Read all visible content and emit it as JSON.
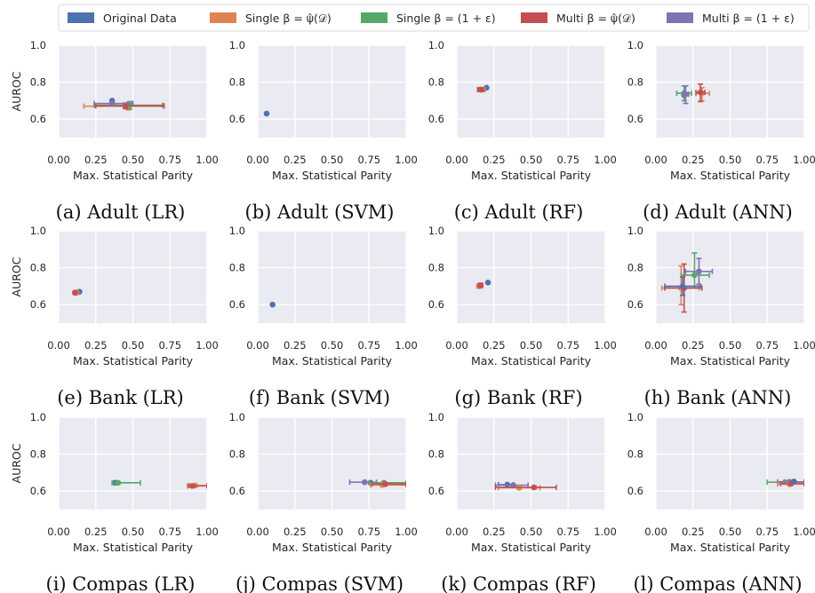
{
  "legend": [
    {
      "label": "Original Data",
      "color": "#4c72b0"
    },
    {
      "label": "Single β = ψ̂(𝒟)",
      "color": "#dd8452"
    },
    {
      "label": "Single β = (1 + ε)",
      "color": "#55a868"
    },
    {
      "label": "Multi β = ψ̂(𝒟)",
      "color": "#c44e52"
    },
    {
      "label": "Multi β = (1 + ε)",
      "color": "#8172b3"
    }
  ],
  "axes": {
    "xlabel": "Max. Statistical Parity",
    "ylabel": "AUROC",
    "xticks": [
      "0.00",
      "0.25",
      "0.50",
      "0.75",
      "1.00"
    ],
    "yticks": [
      "0.6",
      "0.8",
      "1.0"
    ],
    "xlim": [
      0,
      1
    ],
    "ylim": [
      0.5,
      1.0
    ]
  },
  "chart_data": [
    {
      "type": "scatter",
      "title": "(a) Adult (LR)",
      "points": [
        {
          "series": 0,
          "x": 0.36,
          "y": 0.7,
          "xerr": [
            0.0,
            0.0
          ],
          "yerr": [
            0,
            0
          ]
        },
        {
          "series": 1,
          "x": 0.47,
          "y": 0.67,
          "xerr": [
            0.3,
            0.24
          ],
          "yerr": [
            0.02,
            0.02
          ]
        },
        {
          "series": 2,
          "x": 0.48,
          "y": 0.675,
          "xerr": [
            0.24,
            0.22
          ],
          "yerr": [
            0.02,
            0.02
          ]
        },
        {
          "series": 3,
          "x": 0.45,
          "y": 0.672,
          "xerr": [
            0.2,
            0.26
          ],
          "yerr": [
            0.015,
            0.015
          ]
        },
        {
          "series": 4,
          "x": 0.36,
          "y": 0.685,
          "xerr": [
            0.12,
            0.14
          ],
          "yerr": [
            0.01,
            0.01
          ]
        }
      ]
    },
    {
      "type": "scatter",
      "title": "(b) Adult (SVM)",
      "points": [
        {
          "series": 0,
          "x": 0.06,
          "y": 0.63,
          "xerr": [
            0,
            0
          ],
          "yerr": [
            0,
            0
          ]
        }
      ]
    },
    {
      "type": "scatter",
      "title": "(c) Adult (RF)",
      "points": [
        {
          "series": 0,
          "x": 0.2,
          "y": 0.77,
          "xerr": [
            0,
            0
          ],
          "yerr": [
            0,
            0
          ]
        },
        {
          "series": 1,
          "x": 0.17,
          "y": 0.76,
          "xerr": [
            0.02,
            0.02
          ],
          "yerr": [
            0.008,
            0.008
          ]
        },
        {
          "series": 3,
          "x": 0.16,
          "y": 0.76,
          "xerr": [
            0.02,
            0.02
          ],
          "yerr": [
            0.008,
            0.008
          ]
        }
      ]
    },
    {
      "type": "scatter",
      "title": "(d) Adult (ANN)",
      "points": [
        {
          "series": 0,
          "x": 0.19,
          "y": 0.73,
          "xerr": [
            0,
            0
          ],
          "yerr": [
            0,
            0
          ]
        },
        {
          "series": 1,
          "x": 0.31,
          "y": 0.74,
          "xerr": [
            0.04,
            0.05
          ],
          "yerr": [
            0.04,
            0.03
          ]
        },
        {
          "series": 2,
          "x": 0.19,
          "y": 0.74,
          "xerr": [
            0.05,
            0.05
          ],
          "yerr": [
            0.04,
            0.04
          ]
        },
        {
          "series": 3,
          "x": 0.3,
          "y": 0.745,
          "xerr": [
            0.03,
            0.03
          ],
          "yerr": [
            0.05,
            0.045
          ]
        },
        {
          "series": 4,
          "x": 0.2,
          "y": 0.735,
          "xerr": [
            0.02,
            0.02
          ],
          "yerr": [
            0.05,
            0.045
          ]
        }
      ]
    },
    {
      "type": "scatter",
      "title": "(e) Bank (LR)",
      "points": [
        {
          "series": 0,
          "x": 0.14,
          "y": 0.67,
          "xerr": [
            0,
            0
          ],
          "yerr": [
            0,
            0
          ]
        },
        {
          "series": 1,
          "x": 0.12,
          "y": 0.665,
          "xerr": [
            0.01,
            0.01
          ],
          "yerr": [
            0.005,
            0.005
          ]
        },
        {
          "series": 3,
          "x": 0.11,
          "y": 0.665,
          "xerr": [
            0.01,
            0.01
          ],
          "yerr": [
            0.005,
            0.005
          ]
        }
      ]
    },
    {
      "type": "scatter",
      "title": "(f) Bank (SVM)",
      "points": [
        {
          "series": 0,
          "x": 0.1,
          "y": 0.6,
          "xerr": [
            0,
            0
          ],
          "yerr": [
            0,
            0
          ]
        }
      ]
    },
    {
      "type": "scatter",
      "title": "(g) Bank (RF)",
      "points": [
        {
          "series": 0,
          "x": 0.21,
          "y": 0.72,
          "xerr": [
            0,
            0
          ],
          "yerr": [
            0,
            0
          ]
        },
        {
          "series": 1,
          "x": 0.15,
          "y": 0.7,
          "xerr": [
            0.015,
            0.015
          ],
          "yerr": [
            0.008,
            0.008
          ]
        },
        {
          "series": 3,
          "x": 0.16,
          "y": 0.705,
          "xerr": [
            0.015,
            0.015
          ],
          "yerr": [
            0.008,
            0.008
          ]
        }
      ]
    },
    {
      "type": "scatter",
      "title": "(h) Bank (ANN)",
      "points": [
        {
          "series": 1,
          "x": 0.17,
          "y": 0.69,
          "xerr": [
            0.13,
            0.12
          ],
          "yerr": [
            0.09,
            0.12
          ]
        },
        {
          "series": 2,
          "x": 0.26,
          "y": 0.76,
          "xerr": [
            0.09,
            0.1
          ],
          "yerr": [
            0.07,
            0.12
          ]
        },
        {
          "series": 3,
          "x": 0.19,
          "y": 0.69,
          "xerr": [
            0.13,
            0.12
          ],
          "yerr": [
            0.13,
            0.13
          ]
        },
        {
          "series": 4,
          "x": 0.29,
          "y": 0.78,
          "xerr": [
            0.09,
            0.09
          ],
          "yerr": [
            0.07,
            0.07
          ]
        },
        {
          "series": 0,
          "x": 0.18,
          "y": 0.7,
          "xerr": [
            0.12,
            0.12
          ],
          "yerr": [
            0.05,
            0.05
          ]
        }
      ]
    },
    {
      "type": "scatter",
      "title": "(i) Compas (LR)",
      "points": [
        {
          "series": 0,
          "x": 0.38,
          "y": 0.645,
          "xerr": [
            0,
            0
          ],
          "yerr": [
            0,
            0
          ]
        },
        {
          "series": 2,
          "x": 0.4,
          "y": 0.645,
          "xerr": [
            0.04,
            0.15
          ],
          "yerr": [
            0.005,
            0.005
          ]
        },
        {
          "series": 1,
          "x": 0.92,
          "y": 0.63,
          "xerr": [
            0.04,
            0.08
          ],
          "yerr": [
            0.005,
            0.005
          ]
        },
        {
          "series": 3,
          "x": 0.9,
          "y": 0.628,
          "xerr": [
            0.03,
            0.1
          ],
          "yerr": [
            0.005,
            0.005
          ]
        }
      ]
    },
    {
      "type": "scatter",
      "title": "(j) Compas (SVM)",
      "points": [
        {
          "series": 0,
          "x": 0.76,
          "y": 0.645,
          "xerr": [
            0,
            0
          ],
          "yerr": [
            0,
            0
          ]
        },
        {
          "series": 4,
          "x": 0.72,
          "y": 0.648,
          "xerr": [
            0.1,
            0.08
          ],
          "yerr": [
            0.005,
            0.005
          ]
        },
        {
          "series": 2,
          "x": 0.85,
          "y": 0.645,
          "xerr": [
            0.1,
            0.15
          ],
          "yerr": [
            0.005,
            0.005
          ]
        },
        {
          "series": 1,
          "x": 0.84,
          "y": 0.633,
          "xerr": [
            0.08,
            0.16
          ],
          "yerr": [
            0.008,
            0.008
          ]
        },
        {
          "series": 3,
          "x": 0.86,
          "y": 0.638,
          "xerr": [
            0.09,
            0.14
          ],
          "yerr": [
            0.006,
            0.006
          ]
        }
      ]
    },
    {
      "type": "scatter",
      "title": "(k) Compas (RF)",
      "points": [
        {
          "series": 0,
          "x": 0.34,
          "y": 0.635,
          "xerr": [
            0.06,
            0.04
          ],
          "yerr": [
            0,
            0
          ]
        },
        {
          "series": 4,
          "x": 0.38,
          "y": 0.632,
          "xerr": [
            0.12,
            0.1
          ],
          "yerr": [
            0.005,
            0.005
          ]
        },
        {
          "series": 1,
          "x": 0.42,
          "y": 0.618,
          "xerr": [
            0.14,
            0.14
          ],
          "yerr": [
            0.006,
            0.006
          ]
        },
        {
          "series": 3,
          "x": 0.52,
          "y": 0.62,
          "xerr": [
            0.26,
            0.15
          ],
          "yerr": [
            0.008,
            0.008
          ]
        }
      ]
    },
    {
      "type": "scatter",
      "title": "(l) Compas (ANN)",
      "points": [
        {
          "series": 2,
          "x": 0.87,
          "y": 0.648,
          "xerr": [
            0.12,
            0.13
          ],
          "yerr": [
            0.005,
            0.005
          ]
        },
        {
          "series": 4,
          "x": 0.9,
          "y": 0.65,
          "xerr": [
            0.08,
            0.1
          ],
          "yerr": [
            0.005,
            0.005
          ]
        },
        {
          "series": 1,
          "x": 0.9,
          "y": 0.638,
          "xerr": [
            0.08,
            0.1
          ],
          "yerr": [
            0.005,
            0.005
          ]
        },
        {
          "series": 3,
          "x": 0.91,
          "y": 0.64,
          "xerr": [
            0.07,
            0.09
          ],
          "yerr": [
            0.005,
            0.005
          ]
        },
        {
          "series": 0,
          "x": 0.93,
          "y": 0.652,
          "xerr": [
            0,
            0
          ],
          "yerr": [
            0,
            0
          ]
        }
      ]
    }
  ]
}
